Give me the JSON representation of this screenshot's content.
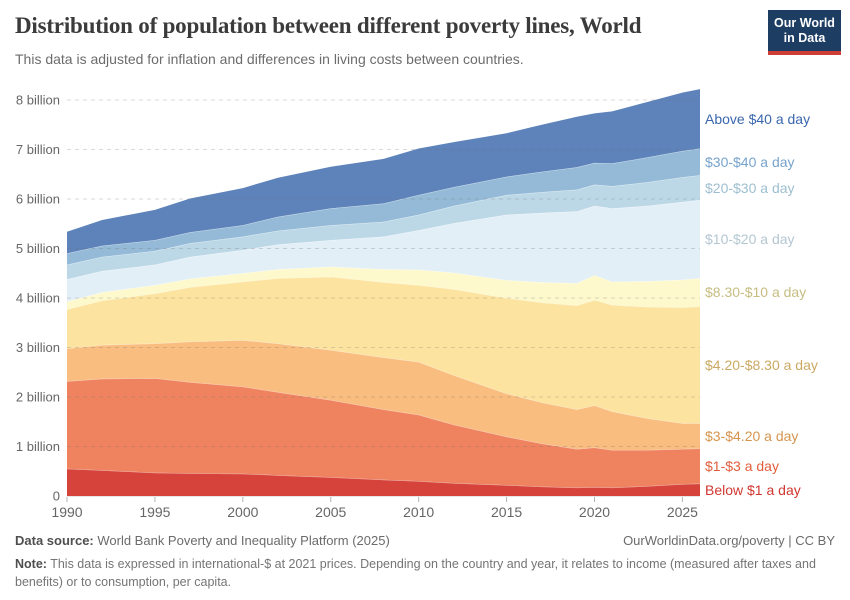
{
  "header": {
    "title": "Distribution of population between different poverty lines, World",
    "subtitle": "This data is adjusted for inflation and differences in living costs between countries."
  },
  "logo": {
    "line1": "Our World",
    "line2": "in Data"
  },
  "colors": {
    "logo_bg": "#1d3d63",
    "logo_underline": "#cf3e36",
    "axis_text": "#666666",
    "gridline": "rgba(110,110,110,0.26)"
  },
  "chart_data": {
    "type": "area",
    "stacked": true,
    "title": "Distribution of population between different poverty lines, World",
    "xlabel": "",
    "ylabel": "",
    "unit": "billions of people",
    "grid": "dashed-horizontal",
    "legend_position": "right-of-area",
    "ylim": [
      0,
      8.4
    ],
    "x_range": [
      1990,
      2026
    ],
    "y_ticks": [
      {
        "v": 0,
        "label": "0"
      },
      {
        "v": 1,
        "label": "1 billion"
      },
      {
        "v": 2,
        "label": "2 billion"
      },
      {
        "v": 3,
        "label": "3 billion"
      },
      {
        "v": 4,
        "label": "4 billion"
      },
      {
        "v": 5,
        "label": "5 billion"
      },
      {
        "v": 6,
        "label": "6 billion"
      },
      {
        "v": 7,
        "label": "7 billion"
      },
      {
        "v": 8,
        "label": "8 billion"
      }
    ],
    "x_ticks": [
      1990,
      1995,
      2000,
      2005,
      2010,
      2015,
      2020,
      2025
    ],
    "years": [
      1990,
      1992,
      1995,
      1997,
      2000,
      2002,
      2005,
      2008,
      2010,
      2012,
      2015,
      2017,
      2019,
      2020,
      2021,
      2023,
      2025,
      2026
    ],
    "series": [
      {
        "id": "below-1",
        "label": "Below $1 a day",
        "color": "#d6433b",
        "label_color": "#d03730",
        "values": [
          0.55,
          0.52,
          0.47,
          0.46,
          0.45,
          0.42,
          0.38,
          0.33,
          0.3,
          0.26,
          0.22,
          0.19,
          0.17,
          0.18,
          0.17,
          0.2,
          0.24,
          0.25
        ]
      },
      {
        "id": "1-3",
        "label": "$1-$3 a day",
        "color": "#ef8360",
        "label_color": "#e25d3b",
        "values": [
          1.77,
          1.85,
          1.91,
          1.84,
          1.76,
          1.68,
          1.56,
          1.42,
          1.34,
          1.18,
          0.98,
          0.87,
          0.78,
          0.8,
          0.76,
          0.73,
          0.71,
          0.71
        ]
      },
      {
        "id": "3-420",
        "label": "$3-$4.20 a day",
        "color": "#f9bd7f",
        "label_color": "#d6954f",
        "values": [
          0.66,
          0.68,
          0.7,
          0.82,
          0.94,
          0.98,
          1.01,
          1.05,
          1.07,
          1.0,
          0.87,
          0.83,
          0.8,
          0.85,
          0.78,
          0.64,
          0.52,
          0.51
        ]
      },
      {
        "id": "420-830",
        "label": "$4.20-$8.30 a day",
        "color": "#fce4a0",
        "label_color": "#cba964",
        "values": [
          0.79,
          0.9,
          1.01,
          1.1,
          1.18,
          1.32,
          1.48,
          1.52,
          1.55,
          1.74,
          1.93,
          2.02,
          2.1,
          2.13,
          2.15,
          2.25,
          2.34,
          2.36
        ]
      },
      {
        "id": "830-10",
        "label": "$8.30-$10 a day",
        "color": "#fdf9cc",
        "label_color": "#c7bd82",
        "values": [
          0.16,
          0.165,
          0.17,
          0.17,
          0.17,
          0.18,
          0.2,
          0.26,
          0.31,
          0.33,
          0.36,
          0.41,
          0.45,
          0.5,
          0.47,
          0.52,
          0.56,
          0.57
        ]
      },
      {
        "id": "10-20",
        "label": "$10-$20 a day",
        "color": "#e3eff6",
        "label_color": "#b3c7d2",
        "values": [
          0.45,
          0.43,
          0.41,
          0.44,
          0.47,
          0.5,
          0.54,
          0.66,
          0.8,
          1.0,
          1.32,
          1.4,
          1.45,
          1.4,
          1.48,
          1.52,
          1.57,
          1.58
        ]
      },
      {
        "id": "20-30",
        "label": "$20-$30 a day",
        "color": "#bcd8e7",
        "label_color": "#9dbfd0",
        "values": [
          0.29,
          0.285,
          0.28,
          0.275,
          0.27,
          0.28,
          0.3,
          0.3,
          0.31,
          0.35,
          0.4,
          0.42,
          0.44,
          0.43,
          0.45,
          0.48,
          0.5,
          0.5
        ]
      },
      {
        "id": "30-40",
        "label": "$30-$40 a day",
        "color": "#94bad7",
        "label_color": "#76a3cd",
        "values": [
          0.23,
          0.225,
          0.22,
          0.225,
          0.23,
          0.28,
          0.34,
          0.37,
          0.4,
          0.38,
          0.37,
          0.41,
          0.45,
          0.44,
          0.46,
          0.5,
          0.53,
          0.54
        ]
      },
      {
        "id": "above-40",
        "label": "Above $40 a day",
        "color": "#5d83ba",
        "label_color": "#3a67ad",
        "values": [
          0.44,
          0.52,
          0.61,
          0.68,
          0.75,
          0.79,
          0.84,
          0.9,
          0.94,
          0.91,
          0.88,
          0.95,
          1.02,
          1.0,
          1.05,
          1.12,
          1.18,
          1.2
        ]
      }
    ]
  },
  "footer": {
    "source_label": "Data source:",
    "source_value": " World Bank Poverty and Inequality Platform (2025)",
    "link": "OurWorldinData.org/poverty | CC BY",
    "note_label": "Note:",
    "note_value": " This data is expressed in international-$ at 2021 prices. Depending on the country and year, it relates to income (measured after taxes and benefits) or to consumption, per capita."
  }
}
